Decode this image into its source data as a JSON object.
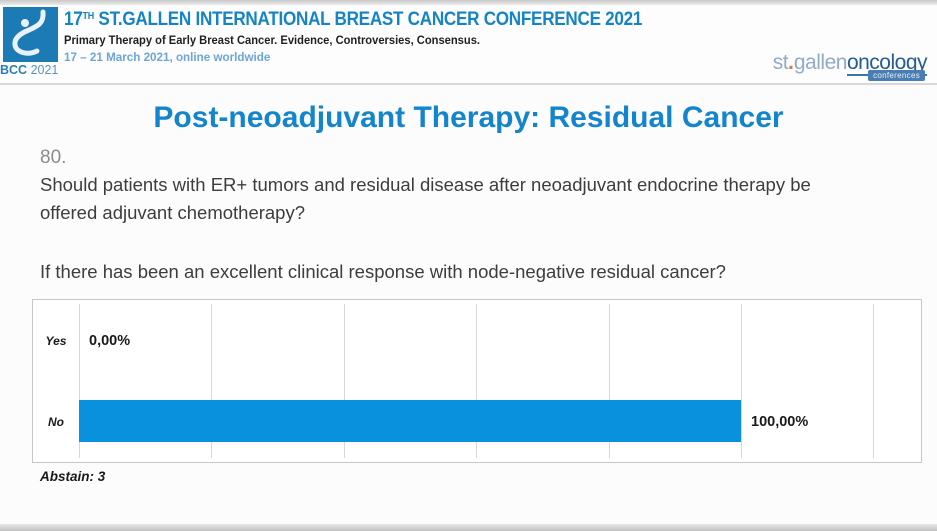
{
  "header": {
    "logo_caption_bold": "BCC",
    "logo_caption_year": "2021",
    "title_num": "17",
    "title_sup": "TH",
    "title_rest": " ST.GALLEN INTERNATIONAL BREAST CANCER CONFERENCE 2021",
    "subtitle": "Primary Therapy of Early Breast Cancer. Evidence, Controversies, Consensus.",
    "date_line": "17 – 21 March 2021, online worldwide",
    "right_logo": {
      "st_gallen": "st",
      "dot": ".",
      "gallen": "gallen",
      "oncology": "oncology",
      "badge": "conferences"
    }
  },
  "slide": {
    "title": "Post-neoadjuvant Therapy: Residual Cancer",
    "question_number": "80.",
    "question": "Should patients with ER+ tumors and residual disease after neoadjuvant endocrine therapy be offered adjuvant chemotherapy?",
    "sub_question": "If there has been an excellent clinical response with node-negative residual cancer?",
    "abstain_note": "Abstain: 3"
  },
  "chart_data": {
    "type": "bar",
    "orientation": "horizontal",
    "title": "",
    "categories": [
      "Yes",
      "No"
    ],
    "values": [
      0,
      100
    ],
    "value_labels": [
      "0,00%",
      "100,00%"
    ],
    "xlim": [
      0,
      127
    ],
    "gridline_values": [
      0,
      20,
      40,
      60,
      80,
      100,
      120
    ],
    "grid": true,
    "bar_color": "#0991de",
    "annotation": "Abstain: 3"
  },
  "colors": {
    "accent_blue": "#1285cd",
    "header_blue": "#1584c6",
    "date_blue": "#6aa6d6",
    "bar_blue": "#0991de",
    "logo_blue": "#1c7ab5"
  }
}
